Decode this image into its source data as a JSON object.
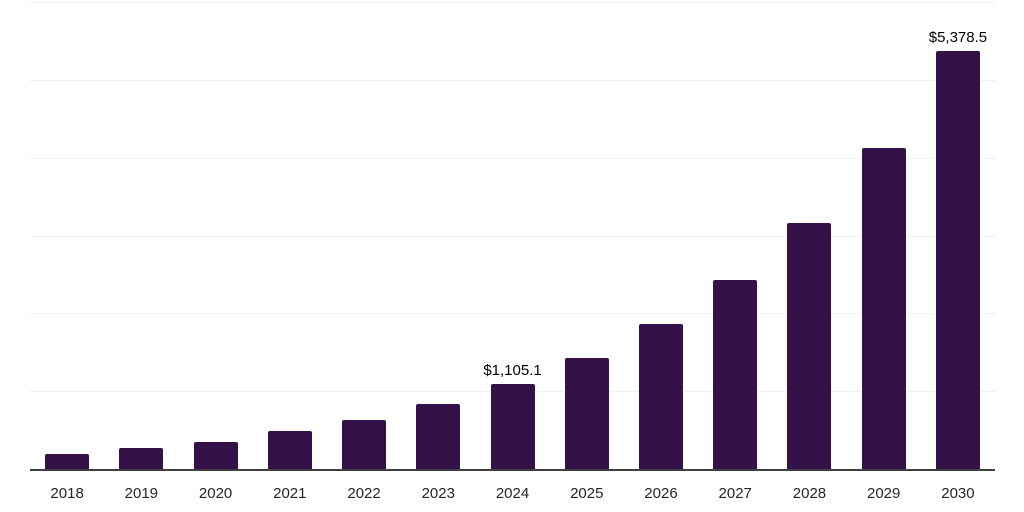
{
  "chart_data": {
    "type": "bar",
    "title": "",
    "xlabel": "",
    "ylabel": "",
    "categories": [
      "2018",
      "2019",
      "2020",
      "2021",
      "2022",
      "2023",
      "2024",
      "2025",
      "2026",
      "2027",
      "2028",
      "2029",
      "2030"
    ],
    "values": [
      205,
      278,
      355,
      500,
      645,
      848,
      1105.1,
      1438.8,
      1873.2,
      2438.6,
      3174.8,
      4133.2,
      5378.5
    ],
    "point_labels": [
      "",
      "",
      "",
      "",
      "",
      "",
      "$1,105.1",
      "",
      "",
      "",
      "",
      "",
      "$5,378.5"
    ],
    "ylim": [
      0,
      6000
    ],
    "gridline_values": [
      1000,
      2000,
      3000,
      4000,
      5000,
      6000
    ],
    "grid": true,
    "legend_position": "none",
    "colors": {
      "bar": "#351149",
      "axis_line": "#404040",
      "gridline": "#f0f0f0",
      "tick_label": "#262626",
      "data_label": "#000000",
      "background": "#ffffff"
    }
  }
}
